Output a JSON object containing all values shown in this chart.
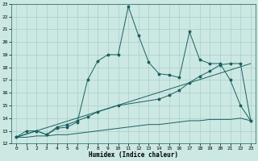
{
  "xlabel": "Humidex (Indice chaleur)",
  "xlim": [
    -0.5,
    23.5
  ],
  "ylim": [
    12,
    23
  ],
  "xticks": [
    0,
    1,
    2,
    3,
    4,
    5,
    6,
    7,
    8,
    9,
    10,
    11,
    12,
    13,
    14,
    15,
    16,
    17,
    18,
    19,
    20,
    21,
    22,
    23
  ],
  "yticks": [
    12,
    13,
    14,
    15,
    16,
    17,
    18,
    19,
    20,
    21,
    22,
    23
  ],
  "bg_color": "#cce8e3",
  "line_color": "#1a6060",
  "grid_color": "#aacccc",
  "line1_x": [
    0,
    1,
    2,
    3,
    4,
    5,
    6,
    7,
    8,
    9,
    10,
    11,
    12,
    13,
    14,
    15,
    16,
    17,
    18,
    19,
    20,
    21,
    22,
    23
  ],
  "line1_y": [
    12.5,
    13.0,
    13.0,
    12.7,
    13.2,
    13.3,
    13.7,
    17.0,
    18.5,
    19.0,
    19.0,
    22.8,
    20.5,
    18.4,
    17.5,
    17.4,
    17.2,
    20.8,
    18.6,
    18.3,
    18.3,
    17.0,
    15.0,
    13.8
  ],
  "line2_x": [
    0,
    2,
    3,
    4,
    5,
    6,
    7,
    8,
    10,
    14,
    15,
    16,
    17,
    18,
    19,
    20,
    21,
    22,
    23
  ],
  "line2_y": [
    12.5,
    13.0,
    12.7,
    13.3,
    13.5,
    13.8,
    14.1,
    14.5,
    15.0,
    15.5,
    15.8,
    16.2,
    16.8,
    17.3,
    17.7,
    18.2,
    18.3,
    18.3,
    13.8
  ],
  "line3_x": [
    0,
    23
  ],
  "line3_y": [
    12.5,
    18.3
  ],
  "line4_x": [
    0,
    1,
    2,
    3,
    4,
    5,
    6,
    7,
    8,
    9,
    10,
    11,
    12,
    13,
    14,
    15,
    16,
    17,
    18,
    19,
    20,
    21,
    22,
    23
  ],
  "line4_y": [
    12.5,
    12.5,
    12.6,
    12.6,
    12.7,
    12.7,
    12.8,
    12.9,
    13.0,
    13.1,
    13.2,
    13.3,
    13.4,
    13.5,
    13.5,
    13.6,
    13.7,
    13.8,
    13.8,
    13.9,
    13.9,
    13.9,
    14.0,
    13.8
  ]
}
